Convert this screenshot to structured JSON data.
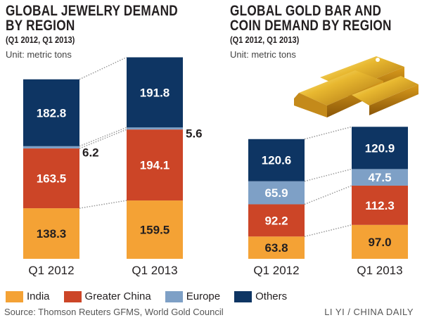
{
  "chart_data": [
    {
      "type": "bar",
      "stacked": true,
      "title": "GLOBAL JEWELRY DEMAND BY REGION",
      "subtitle": "(Q1 2012, Q1 2013)",
      "unit": "Unit: metric tons",
      "categories": [
        "Q1 2012",
        "Q1 2013"
      ],
      "series": [
        {
          "name": "India",
          "values": [
            138.3,
            159.5
          ]
        },
        {
          "name": "Greater China",
          "values": [
            163.5,
            194.1
          ]
        },
        {
          "name": "Europe",
          "values": [
            6.2,
            5.6
          ]
        },
        {
          "name": "Others",
          "values": [
            182.8,
            191.8
          ]
        }
      ]
    },
    {
      "type": "bar",
      "stacked": true,
      "title": "GLOBAL GOLD BAR AND COIN DEMAND BY REGION",
      "subtitle": "(Q1 2012, Q1 2013)",
      "unit": "Unit: metric tons",
      "categories": [
        "Q1 2012",
        "Q1 2013"
      ],
      "series": [
        {
          "name": "India",
          "values": [
            63.8,
            97.0
          ]
        },
        {
          "name": "Greater China",
          "values": [
            92.2,
            112.3
          ]
        },
        {
          "name": "Europe",
          "values": [
            65.9,
            47.5
          ]
        },
        {
          "name": "Others",
          "values": [
            120.6,
            120.9
          ]
        }
      ]
    }
  ],
  "titles": {
    "left_line1": "GLOBAL JEWELRY DEMAND",
    "left_line2": "BY REGION",
    "right_line1": "GLOBAL GOLD BAR AND",
    "right_line2": "COIN DEMAND BY REGION",
    "subtitle": "(Q1 2012, Q1 2013)",
    "unit": "Unit: metric tons"
  },
  "legend": [
    {
      "name": "India",
      "color": "#f4a235"
    },
    {
      "name": "Greater China",
      "color": "#cc4527"
    },
    {
      "name": "Europe",
      "color": "#7ea0c6"
    },
    {
      "name": "Others",
      "color": "#0e3563"
    }
  ],
  "source": "Source: Thomson Reuters GFMS, World Gold Council",
  "credit": "LI YI / CHINA DAILY"
}
